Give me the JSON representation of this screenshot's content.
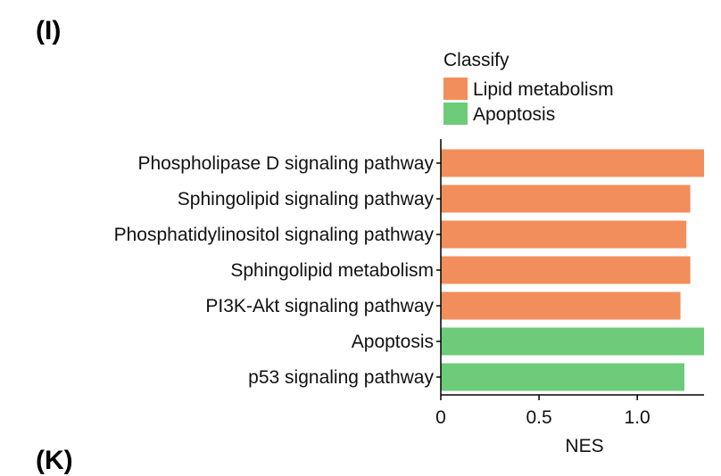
{
  "panel_labels": {
    "top": "(I)",
    "bottom": "(K)"
  },
  "colors": {
    "Lipid metabolism": "#F28E5B",
    "Apoptosis": "#6DCB7A",
    "axis": "#000000"
  },
  "chart_data": {
    "type": "bar",
    "orientation": "horizontal",
    "categories": [
      "Phospholipase D signaling pathway",
      "Sphingolipid signaling pathway",
      "Phosphatidylinositol signaling pathway",
      "Sphingolipid metabolism",
      "PI3K-Akt signaling pathway",
      "Apoptosis",
      "p53 signaling pathway"
    ],
    "values": [
      1.34,
      1.27,
      1.25,
      1.27,
      1.22,
      1.34,
      1.24
    ],
    "classes": [
      "Lipid metabolism",
      "Lipid metabolism",
      "Lipid metabolism",
      "Lipid metabolism",
      "Lipid metabolism",
      "Apoptosis",
      "Apoptosis"
    ],
    "xlabel": "NES",
    "xticks": [
      0,
      0.5,
      1.0
    ],
    "xtick_labels": [
      "0",
      "0.5",
      "1.0"
    ],
    "xlim": [
      0,
      1.34
    ],
    "legend": {
      "title": "Classify",
      "entries": [
        "Lipid metabolism",
        "Apoptosis"
      ],
      "position": "top-right"
    },
    "grid": false
  }
}
